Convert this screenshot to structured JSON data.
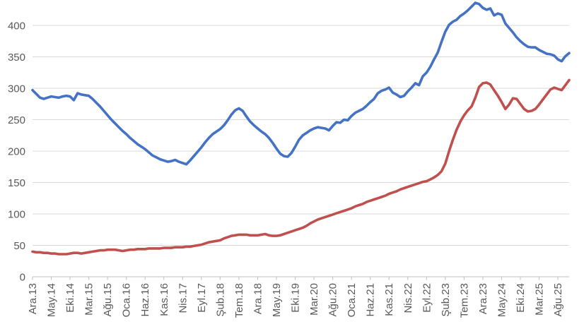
{
  "chart_data": {
    "type": "line",
    "title": "",
    "xlabel": "",
    "ylabel": "",
    "grid": "horizontal",
    "legend_position": "none",
    "x_unit": "month",
    "n_points": 144,
    "x_tick_every": 5,
    "x_tick_labels": [
      "Ara.13",
      "May.14",
      "Eki.14",
      "Mar.15",
      "Ağu.15",
      "Oca.16",
      "Haz.16",
      "Kas.16",
      "Nis.17",
      "Eyl.17",
      "Şub.18",
      "Tem.18",
      "Ara.18",
      "May.19",
      "Eki.19",
      "Mar.20",
      "Ağu.20",
      "Oca.21",
      "Haz.21",
      "Kas.21",
      "Nis.22",
      "Eyl.22",
      "Şub.23",
      "Tem.23",
      "Ara.23",
      "May.24",
      "Eki.24",
      "Mar.25",
      "Ağu.25"
    ],
    "y_ticks": [
      0,
      50,
      100,
      150,
      200,
      250,
      300,
      350,
      400
    ],
    "ylim": [
      0,
      440
    ],
    "colors": {
      "axis_text": "#595959",
      "gridline": "#D9D9D9",
      "axis_line": "#BFBFBF"
    },
    "series": [
      {
        "name": "series-blue",
        "color": "#4472C4",
        "values": [
          297,
          291,
          285,
          283,
          285,
          287,
          286,
          285,
          287,
          288,
          287,
          281,
          292,
          290,
          289,
          288,
          283,
          277,
          271,
          264,
          257,
          250,
          244,
          238,
          232,
          227,
          221,
          216,
          211,
          207,
          203,
          198,
          193,
          190,
          187,
          185,
          183,
          184,
          186,
          183,
          181,
          179,
          185,
          192,
          199,
          206,
          214,
          221,
          227,
          231,
          235,
          241,
          249,
          258,
          265,
          268,
          264,
          255,
          247,
          241,
          236,
          231,
          227,
          221,
          213,
          204,
          196,
          192,
          191,
          197,
          207,
          218,
          225,
          229,
          233,
          236,
          238,
          237,
          236,
          233,
          240,
          246,
          245,
          250,
          249,
          256,
          261,
          264,
          267,
          272,
          278,
          283,
          292,
          296,
          298,
          301,
          293,
          290,
          286,
          288,
          295,
          301,
          308,
          305,
          319,
          325,
          334,
          346,
          357,
          374,
          390,
          401,
          406,
          409,
          415,
          419,
          424,
          430,
          436,
          434,
          428,
          425,
          427,
          416,
          419,
          417,
          403,
          396,
          389,
          381,
          375,
          370,
          366,
          365,
          365,
          361,
          358,
          355,
          354,
          352,
          346,
          343,
          351,
          356
        ]
      },
      {
        "name": "series-red",
        "color": "#C0504D",
        "values": [
          40,
          39,
          39,
          38,
          38,
          37,
          37,
          36,
          36,
          36,
          37,
          38,
          38,
          37,
          38,
          39,
          40,
          41,
          42,
          42,
          43,
          43,
          43,
          42,
          41,
          42,
          43,
          43,
          44,
          44,
          44,
          45,
          45,
          45,
          45,
          46,
          46,
          46,
          47,
          47,
          47,
          48,
          48,
          49,
          50,
          51,
          53,
          55,
          56,
          57,
          58,
          61,
          63,
          65,
          66,
          67,
          67,
          67,
          66,
          66,
          66,
          67,
          68,
          66,
          65,
          65,
          66,
          68,
          70,
          72,
          74,
          76,
          78,
          81,
          85,
          88,
          91,
          93,
          95,
          97,
          99,
          101,
          103,
          105,
          107,
          109,
          112,
          114,
          116,
          119,
          121,
          123,
          125,
          127,
          129,
          132,
          134,
          136,
          139,
          141,
          143,
          145,
          147,
          149,
          151,
          152,
          155,
          158,
          162,
          168,
          180,
          200,
          218,
          234,
          247,
          257,
          265,
          271,
          285,
          302,
          308,
          309,
          306,
          297,
          288,
          278,
          267,
          274,
          284,
          283,
          275,
          267,
          263,
          264,
          267,
          274,
          282,
          290,
          298,
          301,
          299,
          297,
          305,
          313
        ]
      }
    ]
  }
}
